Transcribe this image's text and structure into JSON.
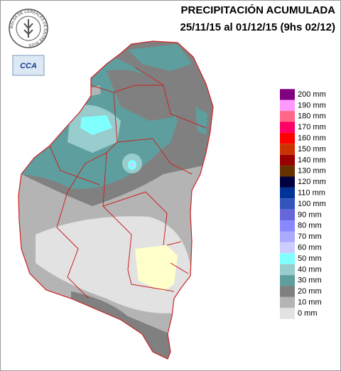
{
  "header": {
    "title": "PRECIPITACIÓN ACUMULADA",
    "subtitle": "25/11/15 al 01/12/15 (9hs 02/12)"
  },
  "logos": {
    "bolsa": "BOLSA DE CEREALES DE ENTRE RIOS",
    "cca": "CCA"
  },
  "legend": {
    "items": [
      {
        "label": "200 mm",
        "color": "#800080"
      },
      {
        "label": "190 mm",
        "color": "#ff99ff"
      },
      {
        "label": "180 mm",
        "color": "#ff6688"
      },
      {
        "label": "170 mm",
        "color": "#ff0066"
      },
      {
        "label": "160 mm",
        "color": "#ff0000"
      },
      {
        "label": "150 mm",
        "color": "#cc3300"
      },
      {
        "label": "140 mm",
        "color": "#990000"
      },
      {
        "label": "130 mm",
        "color": "#663300"
      },
      {
        "label": "120 mm",
        "color": "#000040"
      },
      {
        "label": "110 mm",
        "color": "#003399"
      },
      {
        "label": "100 mm",
        "color": "#3355bb"
      },
      {
        "label": "90 mm",
        "color": "#6666dd"
      },
      {
        "label": "80 mm",
        "color": "#8888ff"
      },
      {
        "label": "70 mm",
        "color": "#aaaaff"
      },
      {
        "label": "60 mm",
        "color": "#ccccff"
      },
      {
        "label": "50 mm",
        "color": "#80ffff"
      },
      {
        "label": "40 mm",
        "color": "#99cccc"
      },
      {
        "label": "30 mm",
        "color": "#5f9e9e"
      },
      {
        "label": "20 mm",
        "color": "#808080"
      },
      {
        "label": "10 mm",
        "color": "#b4b4b4"
      },
      {
        "label": "0 mm",
        "color": "#e2e2e2"
      }
    ]
  }
}
